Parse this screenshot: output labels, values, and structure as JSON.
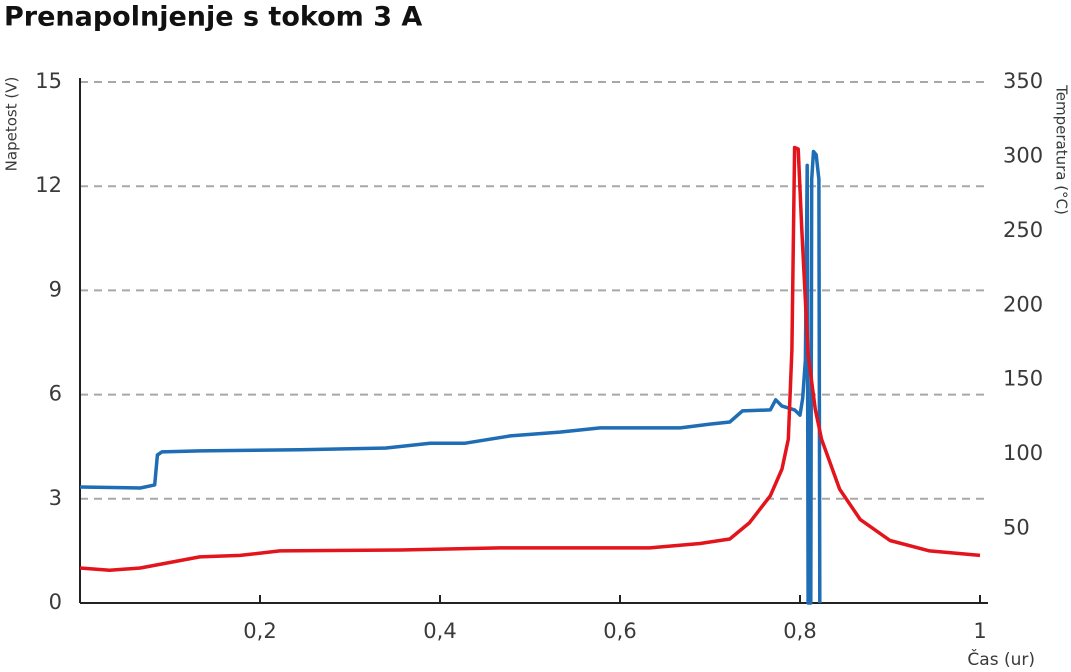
{
  "chart_data": {
    "type": "line",
    "title": "Prenapolnjenje s tokom 3 A",
    "y_label": "Napetost (V)",
    "y2_label": "Temperatura (°C)",
    "x_label": "Čas (ur)",
    "xlim": [
      0,
      1
    ],
    "xticks": [
      {
        "value": 0.2,
        "label": "0,2"
      },
      {
        "value": 0.4,
        "label": "0,4"
      },
      {
        "value": 0.6,
        "label": "0,6"
      },
      {
        "value": 0.8,
        "label": "0,8"
      },
      1
    ],
    "ylim": [
      0,
      15
    ],
    "yticks": [
      0,
      3,
      6,
      9,
      12,
      15
    ],
    "y2lim": [
      0,
      350
    ],
    "y2ticks": [
      50,
      100,
      150,
      200,
      250,
      300,
      350
    ],
    "grid": true,
    "series": [
      {
        "color": "#1f6db5",
        "axis": "y",
        "x": [
          0,
          0.067,
          0.083,
          0.086,
          0.091,
          0.133,
          0.244,
          0.339,
          0.389,
          0.428,
          0.478,
          0.533,
          0.578,
          0.667,
          0.7,
          0.722,
          0.736,
          0.767,
          0.773,
          0.78,
          0.794,
          0.8,
          0.803,
          0.806,
          0.808,
          0.809,
          0.812,
          0.813,
          0.815,
          0.818,
          0.821,
          0.822
        ],
        "values": [
          3.34,
          3.31,
          3.4,
          4.26,
          4.35,
          4.38,
          4.41,
          4.46,
          4.6,
          4.6,
          4.81,
          4.92,
          5.04,
          5.04,
          5.15,
          5.21,
          5.53,
          5.56,
          5.85,
          5.67,
          5.56,
          5.41,
          5.9,
          7.0,
          12.6,
          0,
          0,
          12.2,
          13.0,
          12.9,
          12.2,
          0
        ]
      },
      {
        "color": "#e3141c",
        "axis": "y2",
        "x": [
          0,
          0.033,
          0.067,
          0.133,
          0.178,
          0.222,
          0.356,
          0.467,
          0.633,
          0.689,
          0.722,
          0.744,
          0.767,
          0.78,
          0.787,
          0.791,
          0.794,
          0.798,
          0.802,
          0.809,
          0.817,
          0.824,
          0.844,
          0.867,
          0.9,
          0.944,
          1.0
        ],
        "values": [
          23.5,
          22,
          23.5,
          31,
          32,
          35,
          35.6,
          37,
          37,
          40,
          43,
          54,
          72,
          90,
          110,
          170,
          306,
          305,
          251,
          167,
          130,
          110,
          76.5,
          56,
          42,
          35,
          32
        ]
      }
    ]
  }
}
